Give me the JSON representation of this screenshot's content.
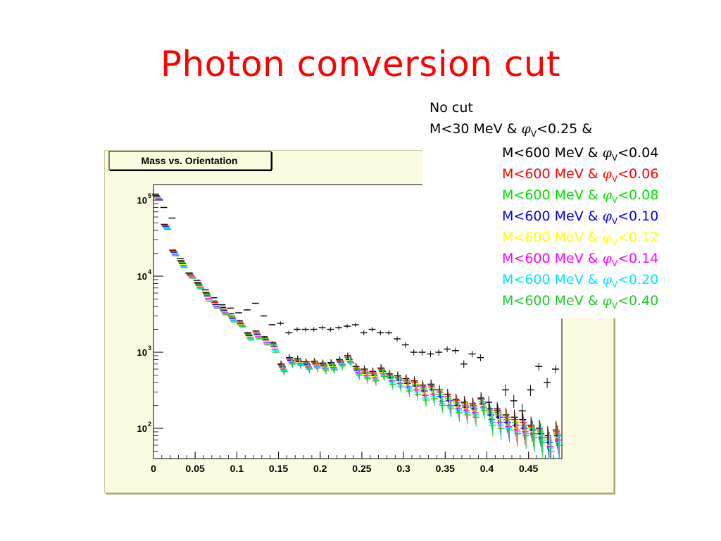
{
  "slide": {
    "title": "Photon conversion cut"
  },
  "plot_panel": {
    "title": "Mass vs. Orientation"
  },
  "legend": [
    {
      "parts": [
        "No cut"
      ],
      "color": "#000000"
    },
    {
      "parts": [
        "M<30 MeV & ",
        "φ",
        "V",
        "<0.25  &"
      ],
      "color": "#000000"
    },
    {
      "parts": [
        "M<600 MeV & ",
        "φ",
        "V",
        "<0.04"
      ],
      "color": "#000000"
    },
    {
      "parts": [
        "M<600 MeV & ",
        "φ",
        "V",
        "<0.06"
      ],
      "color": "#ff0000"
    },
    {
      "parts": [
        "M<600 MeV & ",
        "φ",
        "V",
        "<0.08"
      ],
      "color": "#00e000"
    },
    {
      "parts": [
        "M<600 MeV & ",
        "φ",
        "V",
        "<0.10"
      ],
      "color": "#0000ee"
    },
    {
      "parts": [
        "M<600 MeV & ",
        "φ",
        "V",
        "<0.12"
      ],
      "color": "#ffff00"
    },
    {
      "parts": [
        "M<600 MeV & ",
        "φ",
        "V",
        "<0.14"
      ],
      "color": "#ff00ff"
    },
    {
      "parts": [
        "M<600 MeV & ",
        "φ",
        "V",
        "<0.20"
      ],
      "color": "#00e5ff"
    },
    {
      "parts": [
        "M<600 MeV & ",
        "φ",
        "V",
        "<0.40"
      ],
      "color": "#22cc22"
    }
  ],
  "chart_data": {
    "type": "scatter",
    "title": "Mass vs. Orientation",
    "xlabel": "",
    "ylabel": "",
    "xlim": [
      0,
      0.49
    ],
    "ylim": [
      40,
      160000
    ],
    "ylog": true,
    "x_ticks": [
      "0",
      "0.05",
      "0.1",
      "0.15",
      "0.2",
      "0.25",
      "0.3",
      "0.35",
      "0.4",
      "0.45"
    ],
    "x_tick_values": [
      0,
      0.05,
      0.1,
      0.15,
      0.2,
      0.25,
      0.3,
      0.35,
      0.4,
      0.45
    ],
    "y_ticks": [
      {
        "value": 100,
        "base": "10",
        "exp": "2"
      },
      {
        "value": 1000,
        "base": "10",
        "exp": "3"
      },
      {
        "value": 10000,
        "base": "10",
        "exp": "4"
      },
      {
        "value": 100000,
        "base": "10",
        "exp": "5"
      }
    ],
    "bin_width": 0.01,
    "grid": false,
    "series": [
      {
        "name": "No cut",
        "color": "#000000",
        "x": [
          0.005,
          0.015,
          0.025,
          0.035,
          0.045,
          0.055,
          0.065,
          0.075,
          0.085,
          0.095,
          0.105,
          0.115,
          0.125,
          0.135,
          0.145,
          0.155,
          0.165,
          0.175,
          0.185,
          0.195,
          0.205,
          0.215,
          0.225,
          0.235,
          0.245,
          0.255,
          0.265,
          0.275,
          0.285,
          0.295,
          0.305,
          0.315,
          0.325,
          0.335,
          0.345,
          0.355,
          0.365,
          0.375,
          0.385,
          0.395,
          0.405,
          0.415,
          0.425,
          0.435,
          0.445,
          0.455,
          0.465,
          0.475,
          0.485
        ],
        "y": [
          120000,
          80000,
          58000,
          17000,
          11000,
          8800,
          6600,
          5200,
          4200,
          3800,
          3300,
          3600,
          4400,
          3000,
          2300,
          2400,
          1800,
          2000,
          2000,
          2000,
          2100,
          2000,
          2100,
          2200,
          2300,
          1800,
          2000,
          1800,
          1800,
          1500,
          1250,
          1000,
          1000,
          950,
          1000,
          1100,
          1050,
          700,
          950,
          850,
          220,
          180,
          320,
          230,
          170,
          320,
          650,
          400,
          600
        ]
      },
      {
        "name": "M<30 MeV & φV<0.25 & M<600 MeV & φV<0.04",
        "color": "#000000",
        "x": [
          0.005,
          0.015,
          0.025,
          0.035,
          0.045,
          0.055,
          0.065,
          0.075,
          0.085,
          0.095,
          0.105,
          0.115,
          0.125,
          0.135,
          0.145,
          0.155,
          0.165,
          0.175,
          0.185,
          0.195,
          0.205,
          0.215,
          0.225,
          0.235,
          0.245,
          0.255,
          0.265,
          0.275,
          0.285,
          0.295,
          0.305,
          0.315,
          0.325,
          0.335,
          0.345,
          0.355,
          0.365,
          0.375,
          0.385,
          0.395,
          0.405,
          0.415,
          0.425,
          0.435,
          0.445,
          0.455,
          0.465,
          0.475,
          0.485
        ],
        "y": [
          115000,
          48000,
          22000,
          16000,
          11000,
          8300,
          6100,
          4700,
          3900,
          3200,
          2600,
          1800,
          1900,
          1600,
          1350,
          700,
          850,
          820,
          750,
          760,
          720,
          730,
          800,
          900,
          650,
          600,
          560,
          620,
          520,
          490,
          450,
          420,
          370,
          380,
          320,
          280,
          240,
          220,
          210,
          250,
          180,
          170,
          150,
          140,
          130,
          110,
          100,
          80,
          95
        ]
      },
      {
        "name": "M<600 MeV & φV<0.06",
        "color": "#ff0000",
        "x": [
          0.005,
          0.015,
          0.025,
          0.035,
          0.045,
          0.055,
          0.065,
          0.075,
          0.085,
          0.095,
          0.105,
          0.115,
          0.125,
          0.135,
          0.145,
          0.155,
          0.165,
          0.175,
          0.185,
          0.195,
          0.205,
          0.215,
          0.225,
          0.235,
          0.245,
          0.255,
          0.265,
          0.275,
          0.285,
          0.295,
          0.305,
          0.315,
          0.325,
          0.335,
          0.345,
          0.355,
          0.365,
          0.375,
          0.385,
          0.395,
          0.405,
          0.415,
          0.425,
          0.435,
          0.445,
          0.455,
          0.465,
          0.475,
          0.485
        ],
        "y": [
          113000,
          47000,
          21500,
          15500,
          10700,
          8000,
          5900,
          4500,
          3700,
          3000,
          2500,
          1750,
          1800,
          1550,
          1300,
          680,
          820,
          790,
          720,
          740,
          700,
          710,
          780,
          860,
          620,
          570,
          540,
          600,
          500,
          470,
          430,
          400,
          350,
          360,
          300,
          260,
          230,
          210,
          200,
          240,
          170,
          160,
          140,
          130,
          120,
          105,
          95,
          75,
          90
        ]
      },
      {
        "name": "M<600 MeV & φV<0.08",
        "color": "#00e000",
        "x": [
          0.005,
          0.015,
          0.025,
          0.035,
          0.045,
          0.055,
          0.065,
          0.075,
          0.085,
          0.095,
          0.105,
          0.115,
          0.125,
          0.135,
          0.145,
          0.155,
          0.165,
          0.175,
          0.185,
          0.195,
          0.205,
          0.215,
          0.225,
          0.235,
          0.245,
          0.255,
          0.265,
          0.275,
          0.285,
          0.295,
          0.305,
          0.315,
          0.325,
          0.335,
          0.345,
          0.355,
          0.365,
          0.375,
          0.385,
          0.395,
          0.405,
          0.415,
          0.425,
          0.435,
          0.445,
          0.455,
          0.465,
          0.475,
          0.485
        ],
        "y": [
          111000,
          46000,
          21000,
          15000,
          10400,
          7800,
          5700,
          4300,
          3600,
          2900,
          2400,
          1700,
          1750,
          1500,
          1250,
          660,
          800,
          770,
          700,
          720,
          680,
          690,
          760,
          830,
          600,
          550,
          520,
          580,
          480,
          450,
          410,
          380,
          330,
          340,
          280,
          245,
          215,
          200,
          190,
          225,
          160,
          150,
          130,
          120,
          110,
          100,
          90,
          70,
          85
        ]
      },
      {
        "name": "M<600 MeV & φV<0.10",
        "color": "#0000ee",
        "x": [
          0.005,
          0.015,
          0.025,
          0.035,
          0.045,
          0.055,
          0.065,
          0.075,
          0.085,
          0.095,
          0.105,
          0.115,
          0.125,
          0.135,
          0.145,
          0.155,
          0.165,
          0.175,
          0.185,
          0.195,
          0.205,
          0.215,
          0.225,
          0.235,
          0.245,
          0.255,
          0.265,
          0.275,
          0.285,
          0.295,
          0.305,
          0.315,
          0.325,
          0.335,
          0.345,
          0.355,
          0.365,
          0.375,
          0.385,
          0.395,
          0.405,
          0.415,
          0.425,
          0.435,
          0.445,
          0.455,
          0.465,
          0.475,
          0.485
        ],
        "y": [
          109000,
          45000,
          20500,
          14600,
          10200,
          7600,
          5500,
          4200,
          3500,
          2800,
          2350,
          1650,
          1700,
          1450,
          1200,
          640,
          780,
          750,
          680,
          700,
          660,
          670,
          740,
          800,
          580,
          530,
          500,
          560,
          460,
          430,
          390,
          360,
          310,
          320,
          260,
          230,
          200,
          190,
          180,
          210,
          150,
          140,
          120,
          110,
          100,
          95,
          85,
          65,
          80
        ]
      },
      {
        "name": "M<600 MeV & φV<0.12",
        "color": "#ffff00",
        "x": [
          0.005,
          0.015,
          0.025,
          0.035,
          0.045,
          0.055,
          0.065,
          0.075,
          0.085,
          0.095,
          0.105,
          0.115,
          0.125,
          0.135,
          0.145,
          0.155,
          0.165,
          0.175,
          0.185,
          0.195,
          0.205,
          0.215,
          0.225,
          0.235,
          0.245,
          0.255,
          0.265,
          0.275,
          0.285,
          0.295,
          0.305,
          0.315,
          0.325,
          0.335,
          0.345,
          0.355,
          0.365,
          0.375,
          0.385,
          0.395,
          0.405,
          0.415,
          0.425,
          0.435,
          0.445,
          0.455,
          0.465,
          0.475,
          0.485
        ],
        "y": [
          107000,
          44000,
          20000,
          14200,
          10000,
          7400,
          5300,
          4100,
          3400,
          2700,
          2300,
          1600,
          1650,
          1400,
          1150,
          620,
          760,
          730,
          660,
          680,
          640,
          650,
          720,
          780,
          560,
          510,
          480,
          540,
          440,
          410,
          370,
          340,
          290,
          300,
          240,
          215,
          190,
          180,
          170,
          200,
          140,
          130,
          110,
          100,
          95,
          90,
          80,
          60,
          75
        ]
      },
      {
        "name": "M<600 MeV & φV<0.14",
        "color": "#ff00ff",
        "x": [
          0.005,
          0.015,
          0.025,
          0.035,
          0.045,
          0.055,
          0.065,
          0.075,
          0.085,
          0.095,
          0.105,
          0.115,
          0.125,
          0.135,
          0.145,
          0.155,
          0.165,
          0.175,
          0.185,
          0.195,
          0.205,
          0.215,
          0.225,
          0.235,
          0.245,
          0.255,
          0.265,
          0.275,
          0.285,
          0.295,
          0.305,
          0.315,
          0.325,
          0.335,
          0.345,
          0.355,
          0.365,
          0.375,
          0.385,
          0.395,
          0.405,
          0.415,
          0.425,
          0.435,
          0.445,
          0.455,
          0.465,
          0.475,
          0.485
        ],
        "y": [
          105000,
          43000,
          19500,
          13800,
          9800,
          7200,
          5100,
          4000,
          3300,
          2650,
          2250,
          1550,
          1600,
          1350,
          1100,
          600,
          740,
          710,
          640,
          660,
          620,
          630,
          700,
          760,
          540,
          490,
          460,
          520,
          420,
          390,
          350,
          320,
          270,
          280,
          225,
          200,
          180,
          170,
          160,
          190,
          130,
          120,
          105,
          95,
          90,
          85,
          75,
          58,
          70
        ]
      },
      {
        "name": "M<600 MeV & φV<0.20",
        "color": "#00e5ff",
        "x": [
          0.005,
          0.015,
          0.025,
          0.035,
          0.045,
          0.055,
          0.065,
          0.075,
          0.085,
          0.095,
          0.105,
          0.115,
          0.125,
          0.135,
          0.145,
          0.155,
          0.165,
          0.175,
          0.185,
          0.195,
          0.205,
          0.215,
          0.225,
          0.235,
          0.245,
          0.255,
          0.265,
          0.275,
          0.285,
          0.295,
          0.305,
          0.315,
          0.325,
          0.335,
          0.345,
          0.355,
          0.365,
          0.375,
          0.385,
          0.395,
          0.405,
          0.415,
          0.425,
          0.435,
          0.445,
          0.455,
          0.465,
          0.475,
          0.485
        ],
        "y": [
          103000,
          42000,
          19000,
          13400,
          9600,
          7000,
          4900,
          3900,
          3200,
          2600,
          2200,
          1500,
          1550,
          1300,
          1050,
          580,
          720,
          690,
          620,
          640,
          600,
          610,
          680,
          740,
          520,
          470,
          440,
          500,
          400,
          370,
          330,
          300,
          250,
          260,
          210,
          190,
          170,
          160,
          150,
          180,
          120,
          110,
          100,
          90,
          85,
          80,
          70,
          55,
          65
        ]
      },
      {
        "name": "M<600 MeV & φV<0.40",
        "color": "#22cc22",
        "x": [
          0.005,
          0.015,
          0.025,
          0.035,
          0.045,
          0.055,
          0.065,
          0.075,
          0.085,
          0.095,
          0.105,
          0.115,
          0.125,
          0.135,
          0.145,
          0.155,
          0.165,
          0.175,
          0.185,
          0.195,
          0.205,
          0.215,
          0.225,
          0.235,
          0.245,
          0.255,
          0.265,
          0.275,
          0.285,
          0.295,
          0.305,
          0.315,
          0.325,
          0.335,
          0.345,
          0.355,
          0.365,
          0.375,
          0.385,
          0.395,
          0.405,
          0.415,
          0.425,
          0.435,
          0.445,
          0.455,
          0.465,
          0.475,
          0.485
        ],
        "y": [
          101000,
          41000,
          18500,
          13000,
          9400,
          6800,
          4700,
          3800,
          3100,
          2500,
          2150,
          1450,
          1500,
          1250,
          1000,
          560,
          700,
          670,
          600,
          620,
          580,
          590,
          660,
          720,
          500,
          450,
          420,
          480,
          380,
          350,
          310,
          280,
          235,
          245,
          200,
          180,
          160,
          150,
          140,
          170,
          110,
          100,
          95,
          85,
          80,
          75,
          65,
          50,
          60
        ]
      }
    ]
  }
}
